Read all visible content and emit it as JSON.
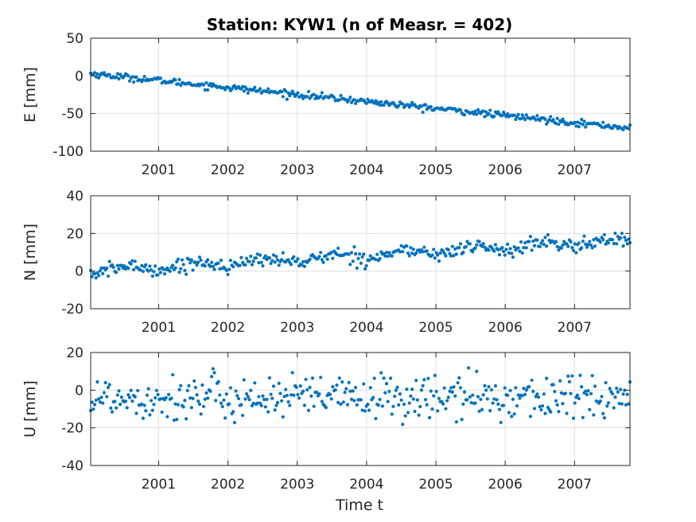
{
  "figure": {
    "title": "Station: KYW1 (n of Measr. = 402)",
    "xlabel": "Time t",
    "n_measurements": 402,
    "marker_color": "#0072BD"
  },
  "chart_data": [
    {
      "type": "scatter",
      "ylabel": "E [mm]",
      "xlim": [
        2000.02,
        2007.8
      ],
      "ylim": [
        -100,
        50
      ],
      "yticks": [
        50,
        0,
        -50,
        -100
      ],
      "ytick_labels": [
        "50",
        "0",
        "-50",
        "-100"
      ],
      "xticks": [
        2001,
        2002,
        2003,
        2004,
        2005,
        2006,
        2007
      ],
      "xtick_labels": [
        "2001",
        "2002",
        "2003",
        "2004",
        "2005",
        "2006",
        "2007"
      ],
      "grid": true,
      "trend": {
        "start": 3,
        "slope_per_year": -9.3
      },
      "noise_mm": 2.2
    },
    {
      "type": "scatter",
      "ylabel": "N [mm]",
      "xlim": [
        2000.02,
        2007.8
      ],
      "ylim": [
        -20,
        40
      ],
      "yticks": [
        40,
        20,
        0,
        -20
      ],
      "ytick_labels": [
        "40",
        "20",
        "0",
        "-20"
      ],
      "xticks": [
        2001,
        2002,
        2003,
        2004,
        2005,
        2006,
        2007
      ],
      "xtick_labels": [
        "2001",
        "2002",
        "2003",
        "2004",
        "2005",
        "2006",
        "2007"
      ],
      "grid": true,
      "trend": {
        "start": 0,
        "slope_per_year": 2.1
      },
      "noise_mm": 1.8
    },
    {
      "type": "scatter",
      "ylabel": "U [mm]",
      "xlim": [
        2000.02,
        2007.8
      ],
      "ylim": [
        -40,
        20
      ],
      "yticks": [
        20,
        0,
        -20,
        -40
      ],
      "ytick_labels": [
        "20",
        "0",
        "-20",
        "-40"
      ],
      "xticks": [
        2001,
        2002,
        2003,
        2004,
        2005,
        2006,
        2007
      ],
      "xtick_labels": [
        "2001",
        "2002",
        "2003",
        "2004",
        "2005",
        "2006",
        "2007"
      ],
      "grid": true,
      "trend": {
        "start": -4,
        "slope_per_year": 0
      },
      "noise_mm": 6.0
    }
  ]
}
